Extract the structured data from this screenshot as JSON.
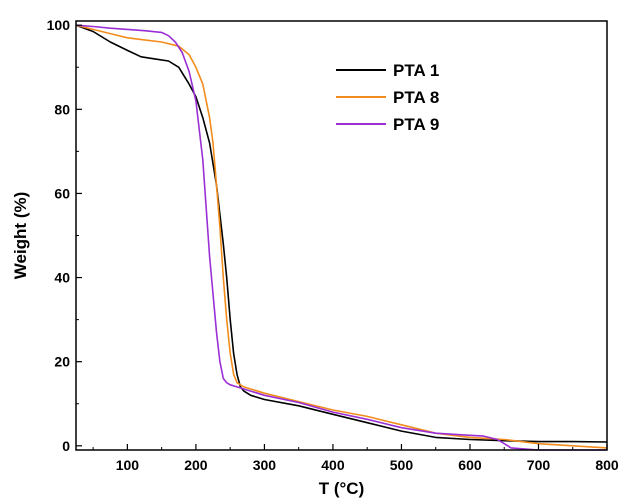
{
  "chart_data": {
    "type": "line",
    "title": "",
    "xlabel": "T (°C)",
    "ylabel": "Weight (%)",
    "xlim": [
      25,
      800
    ],
    "ylim": [
      -1,
      101
    ],
    "xticks": [
      100,
      200,
      300,
      400,
      500,
      600,
      700,
      800
    ],
    "yticks": [
      0,
      20,
      40,
      60,
      80,
      100
    ],
    "grid": false,
    "legend_position": "top-right",
    "series": [
      {
        "name": "PTA 1",
        "color": "#000000",
        "x": [
          25,
          50,
          75,
          100,
          120,
          140,
          160,
          175,
          190,
          200,
          210,
          220,
          230,
          240,
          245,
          250,
          255,
          260,
          265,
          270,
          280,
          300,
          350,
          400,
          450,
          500,
          550,
          600,
          650,
          700,
          750,
          800
        ],
        "y": [
          100,
          98.5,
          96,
          94,
          92.5,
          92,
          91.5,
          90,
          86,
          83,
          78,
          72,
          62,
          48,
          40,
          30,
          22,
          17,
          14,
          13,
          12,
          11,
          9.5,
          7.5,
          5.5,
          3.5,
          2,
          1.5,
          1.2,
          1.0,
          1.0,
          0.9
        ]
      },
      {
        "name": "PTA 8",
        "color": "#f28c1c",
        "x": [
          25,
          50,
          75,
          100,
          125,
          150,
          175,
          190,
          200,
          210,
          220,
          225,
          230,
          235,
          240,
          245,
          250,
          255,
          260,
          270,
          300,
          350,
          400,
          450,
          500,
          550,
          600,
          650,
          700,
          750,
          800
        ],
        "y": [
          100,
          99,
          98,
          97,
          96.5,
          96,
          95,
          93,
          90,
          86,
          78,
          72,
          62,
          52,
          40,
          30,
          22,
          17,
          15,
          14,
          12.5,
          10.5,
          8.5,
          7,
          5,
          3,
          2,
          1.5,
          0.5,
          0,
          -0.5
        ]
      },
      {
        "name": "PTA 9",
        "color": "#9b2fd6",
        "x": [
          25,
          50,
          75,
          100,
          125,
          150,
          160,
          170,
          180,
          190,
          200,
          210,
          220,
          230,
          235,
          240,
          245,
          250,
          260,
          270,
          300,
          350,
          400,
          450,
          500,
          550,
          600,
          620,
          640,
          660,
          700,
          750,
          800
        ],
        "y": [
          100,
          99.7,
          99.3,
          99,
          98.7,
          98.3,
          97.5,
          96,
          93.5,
          89,
          82,
          68,
          45,
          27,
          20,
          16,
          15,
          14.5,
          14,
          13.5,
          12,
          10.3,
          8,
          6.3,
          4.3,
          3,
          2.5,
          2.3,
          1.5,
          -0.5,
          -1,
          -1,
          -1
        ]
      }
    ]
  }
}
